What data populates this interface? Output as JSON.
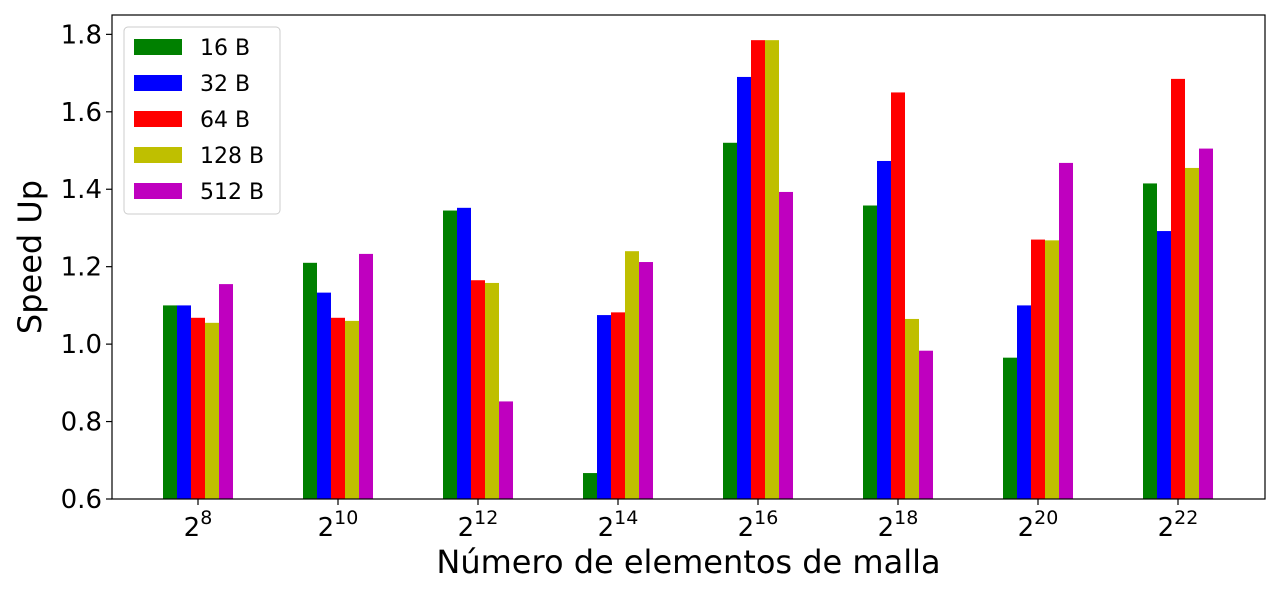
{
  "chart_data": {
    "type": "bar",
    "xlabel": "Número de elementos de malla",
    "ylabel": "Speed Up",
    "ylim": [
      0.6,
      1.85
    ],
    "yticks": [
      "0.6",
      "0.8",
      "1.0",
      "1.2",
      "1.4",
      "1.6",
      "1.8"
    ],
    "ytick_values": [
      0.6,
      0.8,
      1.0,
      1.2,
      1.4,
      1.6,
      1.8
    ],
    "categories": [
      {
        "base": "2",
        "exp": "8"
      },
      {
        "base": "2",
        "exp": "10"
      },
      {
        "base": "2",
        "exp": "12"
      },
      {
        "base": "2",
        "exp": "14"
      },
      {
        "base": "2",
        "exp": "16"
      },
      {
        "base": "2",
        "exp": "18"
      },
      {
        "base": "2",
        "exp": "20"
      },
      {
        "base": "2",
        "exp": "22"
      }
    ],
    "legend_position": "top-left",
    "grid": false,
    "series": [
      {
        "name": "16 B",
        "color": "#008000",
        "values": [
          1.1,
          1.21,
          1.345,
          0.667,
          1.52,
          1.358,
          0.965,
          1.415
        ]
      },
      {
        "name": "32 B",
        "color": "#0000ff",
        "values": [
          1.1,
          1.133,
          1.352,
          1.075,
          1.69,
          1.473,
          1.1,
          1.292
        ]
      },
      {
        "name": "64 B",
        "color": "#ff0000",
        "values": [
          1.068,
          1.068,
          1.165,
          1.082,
          1.785,
          1.65,
          1.27,
          1.685
        ]
      },
      {
        "name": "128 B",
        "color": "#bfbf00",
        "values": [
          1.055,
          1.06,
          1.158,
          1.24,
          1.785,
          1.065,
          1.268,
          1.455
        ]
      },
      {
        "name": "512 B",
        "color": "#bf00bf",
        "values": [
          1.155,
          1.233,
          0.852,
          1.212,
          1.393,
          0.983,
          1.468,
          1.505
        ]
      }
    ]
  }
}
